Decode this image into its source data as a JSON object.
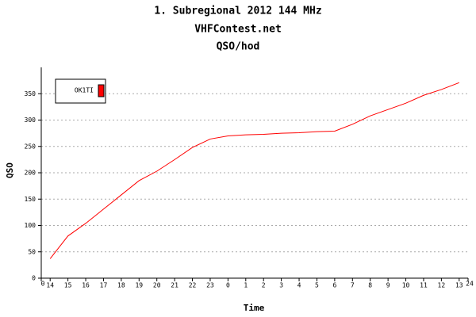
{
  "chart_data": {
    "type": "line",
    "title": "1. Subregional 2012 144 MHz",
    "subtitle": "VHFContest.net",
    "subtitle2": "QSO/hod",
    "x_label": "Time",
    "y_label": "QSO",
    "x": [
      0.5,
      1.5,
      2.5,
      3.5,
      4.5,
      5.5,
      6.5,
      7.5,
      8.5,
      9.5,
      10.5,
      11.5,
      12.5,
      13.5,
      14.5,
      15.5,
      16.5,
      17.5,
      18.5,
      19.5,
      20.5,
      21.5,
      22.5,
      23.5
    ],
    "series": [
      {
        "name": "OK1TI",
        "color": "#ff0000",
        "values": [
          37,
          80,
          104,
          131,
          158,
          185,
          203,
          225,
          248,
          264,
          270,
          272,
          273,
          275,
          276,
          278,
          279,
          292,
          308,
          320,
          332,
          347,
          358,
          371
        ]
      }
    ],
    "xlim": [
      0,
      24
    ],
    "xticks": [
      0,
      {
        "value": 0.5,
        "label": "14"
      },
      {
        "value": 1.5,
        "label": "15"
      },
      {
        "value": 2.5,
        "label": "16"
      },
      {
        "value": 3.5,
        "label": "17"
      },
      {
        "value": 4.5,
        "label": "18"
      },
      {
        "value": 5.5,
        "label": "19"
      },
      {
        "value": 6.5,
        "label": "20"
      },
      {
        "value": 7.5,
        "label": "21"
      },
      {
        "value": 8.5,
        "label": "22"
      },
      {
        "value": 9.5,
        "label": "23"
      },
      {
        "value": 10.5,
        "label": "0"
      },
      {
        "value": 11.5,
        "label": "1"
      },
      {
        "value": 12.5,
        "label": "2"
      },
      {
        "value": 13.5,
        "label": "3"
      },
      {
        "value": 14.5,
        "label": "4"
      },
      {
        "value": 15.5,
        "label": "5"
      },
      {
        "value": 16.5,
        "label": "6"
      },
      {
        "value": 17.5,
        "label": "7"
      },
      {
        "value": 18.5,
        "label": "8"
      },
      {
        "value": 19.5,
        "label": "9"
      },
      {
        "value": 20.5,
        "label": "10"
      },
      {
        "value": 21.5,
        "label": "11"
      },
      {
        "value": 22.5,
        "label": "12"
      },
      {
        "value": 23.5,
        "label": "13"
      },
      24
    ],
    "ylim": [
      0,
      400
    ],
    "yticks": [
      0,
      50,
      100,
      150,
      200,
      250,
      300,
      350
    ],
    "grid": true,
    "legend": "top-left"
  }
}
